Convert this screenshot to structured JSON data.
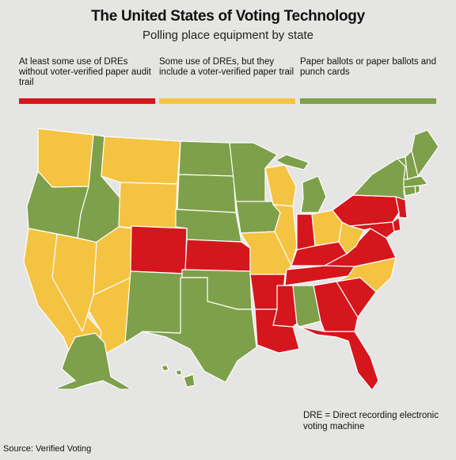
{
  "header": {
    "title": "The United States of Voting Technology",
    "subtitle": "Polling place equipment by state"
  },
  "colors": {
    "red": "#d5161c",
    "yellow": "#f5c342",
    "green": "#7ea04a"
  },
  "legend": [
    {
      "category": "red",
      "label": "At least some use of DREs without voter-verified paper audit trail"
    },
    {
      "category": "yellow",
      "label": "Some use of DREs, but they include a voter-verified paper trail"
    },
    {
      "category": "green",
      "label": "Paper ballots or paper ballots and punch cards"
    }
  ],
  "states": {
    "WA": "yellow",
    "OR": "green",
    "CA": "yellow",
    "NV": "yellow",
    "ID": "green",
    "MT": "yellow",
    "WY": "yellow",
    "UT": "yellow",
    "AZ": "yellow",
    "CO": "red",
    "NM": "green",
    "ND": "green",
    "SD": "green",
    "NE": "green",
    "KS": "red",
    "OK": "green",
    "TX": "green",
    "MN": "green",
    "IA": "green",
    "MO": "yellow",
    "AR": "red",
    "LA": "red",
    "WI": "yellow",
    "IL": "yellow",
    "MS": "red",
    "MI": "green",
    "IN": "red",
    "KY": "red",
    "TN": "red",
    "AL": "green",
    "OH": "yellow",
    "WV": "yellow",
    "GA": "red",
    "FL": "red",
    "SC": "red",
    "NC": "yellow",
    "VA": "red",
    "PA": "red",
    "NY": "green",
    "NJ": "red",
    "MD": "red",
    "DE": "red",
    "CT": "green",
    "RI": "green",
    "MA": "green",
    "VT": "green",
    "NH": "green",
    "ME": "green",
    "AK": "green",
    "HI": "green"
  },
  "footnote": "DRE = Direct recording electronic voting machine",
  "source": "Source: Verified Voting"
}
